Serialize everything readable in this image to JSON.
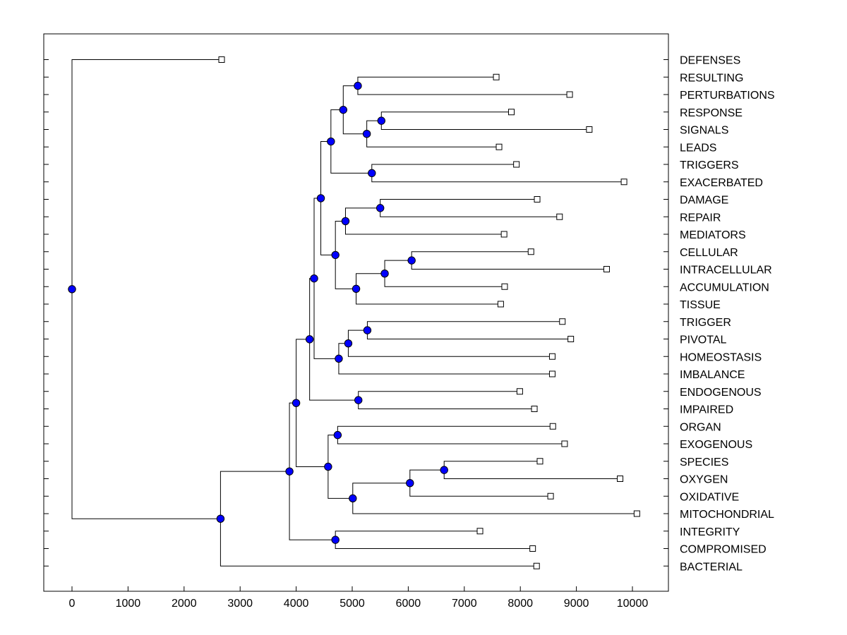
{
  "chart_data": {
    "type": "dendrogram",
    "title": "",
    "xlabel": "",
    "ylabel": "",
    "xlim": [
      -500,
      10600
    ],
    "x_ticks": [
      0,
      1000,
      2000,
      3000,
      4000,
      5000,
      6000,
      7000,
      8000,
      9000,
      10000
    ],
    "grid": false,
    "leaf_labels_position": "right",
    "colors": {
      "node": "#0000ff",
      "line": "#000000",
      "leaf": "#ffffff"
    },
    "leaves": [
      {
        "label": "DEFENSES",
        "value": 2670
      },
      {
        "label": "RESULTING",
        "value": 7570
      },
      {
        "label": "PERTURBATIONS",
        "value": 8880
      },
      {
        "label": "RESPONSE",
        "value": 7840
      },
      {
        "label": "SIGNALS",
        "value": 9230
      },
      {
        "label": "LEADS",
        "value": 7620
      },
      {
        "label": "TRIGGERS",
        "value": 7930
      },
      {
        "label": "EXACERBATED",
        "value": 9850
      },
      {
        "label": "DAMAGE",
        "value": 8300
      },
      {
        "label": "REPAIR",
        "value": 8700
      },
      {
        "label": "MEDIATORS",
        "value": 7710
      },
      {
        "label": "CELLULAR",
        "value": 8190
      },
      {
        "label": "INTRACELLULAR",
        "value": 9540
      },
      {
        "label": "ACCUMULATION",
        "value": 7720
      },
      {
        "label": "TISSUE",
        "value": 7650
      },
      {
        "label": "TRIGGER",
        "value": 8750
      },
      {
        "label": "PIVOTAL",
        "value": 8900
      },
      {
        "label": "HOMEOSTASIS",
        "value": 8570
      },
      {
        "label": "IMBALANCE",
        "value": 8570
      },
      {
        "label": "ENDOGENOUS",
        "value": 7990
      },
      {
        "label": "IMPAIRED",
        "value": 8250
      },
      {
        "label": "ORGAN",
        "value": 8580
      },
      {
        "label": "EXOGENOUS",
        "value": 8790
      },
      {
        "label": "SPECIES",
        "value": 8350
      },
      {
        "label": "OXYGEN",
        "value": 9780
      },
      {
        "label": "OXIDATIVE",
        "value": 8540
      },
      {
        "label": "MITOCHONDRIAL",
        "value": 10080
      },
      {
        "label": "INTEGRITY",
        "value": 7280
      },
      {
        "label": "COMPROMISED",
        "value": 8220
      },
      {
        "label": "BACTERIAL",
        "value": 8290
      }
    ],
    "nodes": [
      {
        "id": "n_resulting_pert",
        "value": 5100,
        "children": [
          "RESULTING",
          "PERTURBATIONS"
        ]
      },
      {
        "id": "n_response_signals",
        "value": 5520,
        "children": [
          "RESPONSE",
          "SIGNALS"
        ]
      },
      {
        "id": "n_rs_leads",
        "value": 5260,
        "children": [
          "n_response_signals",
          "LEADS"
        ]
      },
      {
        "id": "n_top3",
        "value": 4840,
        "children": [
          "n_resulting_pert",
          "n_rs_leads"
        ]
      },
      {
        "id": "n_trig_exac",
        "value": 5350,
        "children": [
          "TRIGGERS",
          "EXACERBATED"
        ]
      },
      {
        "id": "n_top4",
        "value": 4620,
        "children": [
          "n_top3",
          "n_trig_exac"
        ]
      },
      {
        "id": "n_damage_repair",
        "value": 5500,
        "children": [
          "DAMAGE",
          "REPAIR"
        ]
      },
      {
        "id": "n_dr_med",
        "value": 4880,
        "children": [
          "n_damage_repair",
          "MEDIATORS"
        ]
      },
      {
        "id": "n_cell_intra",
        "value": 6060,
        "children": [
          "CELLULAR",
          "INTRACELLULAR"
        ]
      },
      {
        "id": "n_ci_accum",
        "value": 5580,
        "children": [
          "n_cell_intra",
          "ACCUMULATION"
        ]
      },
      {
        "id": "n_cia_tissue",
        "value": 5070,
        "children": [
          "n_ci_accum",
          "TISSUE"
        ]
      },
      {
        "id": "n_mid1",
        "value": 4700,
        "children": [
          "n_dr_med",
          "n_cia_tissue"
        ]
      },
      {
        "id": "n_mid2",
        "value": 4440,
        "children": [
          "n_top4",
          "n_mid1"
        ]
      },
      {
        "id": "n_trig_piv",
        "value": 5270,
        "children": [
          "TRIGGER",
          "PIVOTAL"
        ]
      },
      {
        "id": "n_tp_homeo",
        "value": 4930,
        "children": [
          "n_trig_piv",
          "HOMEOSTASIS"
        ]
      },
      {
        "id": "n_tph_imb",
        "value": 4760,
        "children": [
          "n_tp_homeo",
          "IMBALANCE"
        ]
      },
      {
        "id": "n_mid3",
        "value": 4320,
        "children": [
          "n_mid2",
          "n_tph_imb"
        ]
      },
      {
        "id": "n_endo_imp",
        "value": 5110,
        "children": [
          "ENDOGENOUS",
          "IMPAIRED"
        ]
      },
      {
        "id": "n_mid4",
        "value": 4240,
        "children": [
          "n_mid3",
          "n_endo_imp"
        ]
      },
      {
        "id": "n_organ_exo",
        "value": 4740,
        "children": [
          "ORGAN",
          "EXOGENOUS"
        ]
      },
      {
        "id": "n_spec_oxy",
        "value": 6640,
        "children": [
          "SPECIES",
          "OXYGEN"
        ]
      },
      {
        "id": "n_so_oxid",
        "value": 6030,
        "children": [
          "n_spec_oxy",
          "OXIDATIVE"
        ]
      },
      {
        "id": "n_soo_mito",
        "value": 5010,
        "children": [
          "n_so_oxid",
          "MITOCHONDRIAL"
        ]
      },
      {
        "id": "n_oe_mito",
        "value": 4570,
        "children": [
          "n_organ_exo",
          "n_soo_mito"
        ]
      },
      {
        "id": "n_mid5",
        "value": 4000,
        "children": [
          "n_mid4",
          "n_oe_mito"
        ]
      },
      {
        "id": "n_integ_comp",
        "value": 4700,
        "children": [
          "INTEGRITY",
          "COMPROMISED"
        ]
      },
      {
        "id": "n_mid6",
        "value": 3880,
        "children": [
          "n_mid5",
          "n_integ_comp"
        ]
      },
      {
        "id": "n_mid7",
        "value": 2650,
        "children": [
          "n_mid6",
          "BACTERIAL"
        ]
      },
      {
        "id": "n_root",
        "value": 0,
        "children": [
          "DEFENSES",
          "n_mid7"
        ]
      }
    ],
    "root": "n_root"
  }
}
